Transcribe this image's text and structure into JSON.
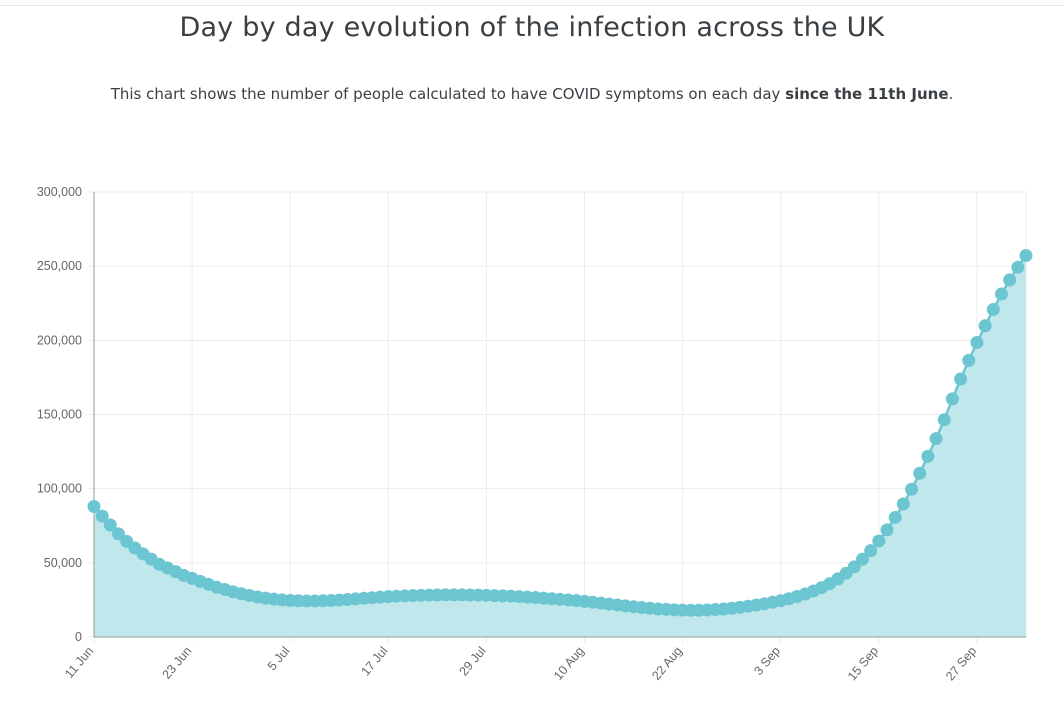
{
  "chart_data": {
    "type": "area",
    "title": "Day by day evolution of the infection across the UK",
    "subtitle_prefix": "This chart shows the number of people calculated to have COVID symptoms on each day ",
    "subtitle_bold": "since the 11th June",
    "subtitle_suffix": ".",
    "xlabel": "",
    "ylabel": "",
    "ylim": [
      0,
      300000
    ],
    "y_ticks": [
      0,
      50000,
      100000,
      150000,
      200000,
      250000,
      300000
    ],
    "y_tick_labels": [
      "0",
      "50,000",
      "100,000",
      "150,000",
      "200,000",
      "250,000",
      "300,000"
    ],
    "x_tick_labels": [
      "11 Jun",
      "23 Jun",
      "5 Jul",
      "17 Jul",
      "29 Jul",
      "10 Aug",
      "22 Aug",
      "3 Sep",
      "15 Sep",
      "27 Sep"
    ],
    "x_tick_day_index": [
      0,
      12,
      24,
      36,
      48,
      60,
      72,
      84,
      96,
      108
    ],
    "grid": true,
    "colors": {
      "line": "#6cc6d1",
      "fill": "#c0e7ec",
      "axis": "#999999",
      "grid": "#ececec"
    },
    "series": [
      {
        "name": "People with COVID symptoms",
        "start_date": "11 Jun",
        "values": [
          88000,
          81500,
          75500,
          69500,
          64500,
          60000,
          56000,
          52500,
          49000,
          46500,
          44000,
          41500,
          39500,
          37500,
          35500,
          33500,
          32000,
          30500,
          29200,
          28000,
          27000,
          26200,
          25500,
          25000,
          24600,
          24400,
          24300,
          24300,
          24400,
          24600,
          24900,
          25300,
          25700,
          26100,
          26500,
          26900,
          27200,
          27500,
          27700,
          27900,
          28100,
          28200,
          28300,
          28400,
          28400,
          28400,
          28300,
          28200,
          28100,
          27900,
          27700,
          27500,
          27200,
          26900,
          26600,
          26200,
          25800,
          25400,
          25000,
          24500,
          24000,
          23400,
          22800,
          22200,
          21600,
          21000,
          20400,
          19900,
          19400,
          18900,
          18600,
          18300,
          18100,
          18000,
          18000,
          18200,
          18500,
          18900,
          19400,
          20000,
          20700,
          21500,
          22400,
          23400,
          24500,
          25800,
          27300,
          29000,
          31000,
          33300,
          36000,
          39200,
          43000,
          47300,
          52400,
          58200,
          64700,
          72200,
          80600,
          89700,
          99600,
          110400,
          121800,
          133700,
          146500,
          160500,
          173900,
          186500,
          198500,
          209800,
          220800,
          231200,
          240700,
          249300,
          257200
        ]
      }
    ]
  }
}
